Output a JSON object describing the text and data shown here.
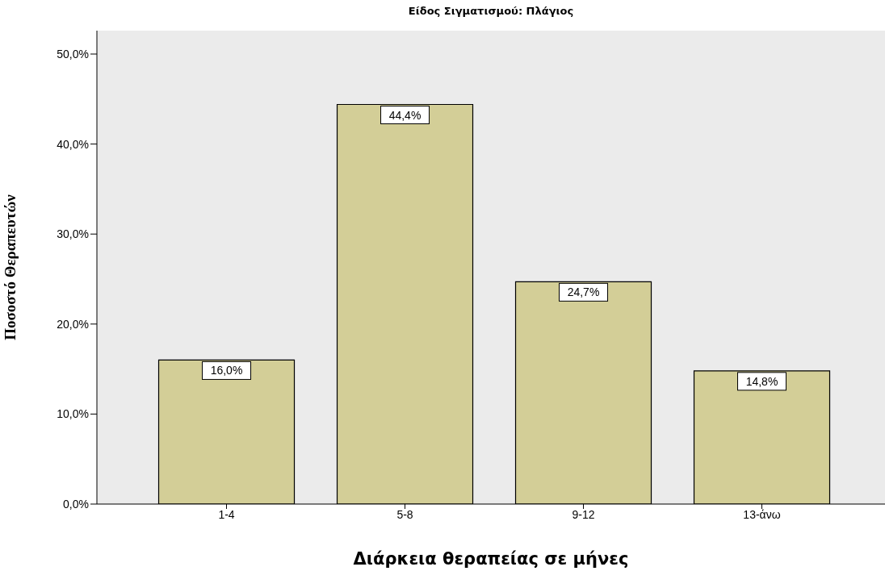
{
  "chart_data": {
    "type": "bar",
    "title": "Είδος Σιγματισμού: Πλάγιος",
    "xlabel": "Διάρκεια θεραπείας σε μήνες",
    "ylabel": "Ποσοστό Θεραπευτών",
    "categories": [
      "1-4",
      "5-8",
      "9-12",
      "13-άνω"
    ],
    "values": [
      16.0,
      44.4,
      24.7,
      14.8
    ],
    "value_labels": [
      "16,0%",
      "44,4%",
      "24,7%",
      "14,8%"
    ],
    "color": "#d3ce97",
    "ylim": [
      0,
      52.6
    ],
    "yticks": [
      {
        "value": 0,
        "label": "0,0%"
      },
      {
        "value": 10,
        "label": "10,0%"
      },
      {
        "value": 20,
        "label": "20,0%"
      },
      {
        "value": 30,
        "label": "30,0%"
      },
      {
        "value": 40,
        "label": "40,0%"
      },
      {
        "value": 50,
        "label": "50,0%"
      }
    ],
    "grid": false
  }
}
